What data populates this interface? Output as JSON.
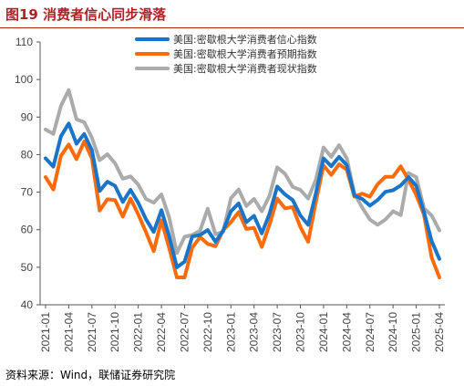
{
  "title": "图19 消费者信心同步滑落",
  "source": "资料来源：Wind，联储证券研究院",
  "colors": {
    "brand": "#b31f24",
    "series": [
      "#1a75c9",
      "#ff6a0a",
      "#ababab"
    ]
  },
  "chart_data": {
    "type": "line",
    "x_ticks": [
      "2021-01",
      "2021-04",
      "2021-07",
      "2021-10",
      "2022-01",
      "2022-04",
      "2022-07",
      "2022-10",
      "2023-01",
      "2023-04",
      "2023-07",
      "2023-10",
      "2024-01",
      "2024-04",
      "2024-07",
      "2024-10",
      "2025-01",
      "2025-04"
    ],
    "x": [
      "2021-01",
      "2021-02",
      "2021-03",
      "2021-04",
      "2021-05",
      "2021-06",
      "2021-07",
      "2021-08",
      "2021-09",
      "2021-10",
      "2021-11",
      "2021-12",
      "2022-01",
      "2022-02",
      "2022-03",
      "2022-04",
      "2022-05",
      "2022-06",
      "2022-07",
      "2022-08",
      "2022-09",
      "2022-10",
      "2022-11",
      "2022-12",
      "2023-01",
      "2023-02",
      "2023-03",
      "2023-04",
      "2023-05",
      "2023-06",
      "2023-07",
      "2023-08",
      "2023-09",
      "2023-10",
      "2023-11",
      "2023-12",
      "2024-01",
      "2024-02",
      "2024-03",
      "2024-04",
      "2024-05",
      "2024-06",
      "2024-07",
      "2024-08",
      "2024-09",
      "2024-10",
      "2024-11",
      "2024-12",
      "2025-01",
      "2025-02",
      "2025-03",
      "2025-04"
    ],
    "ylim": [
      40,
      110
    ],
    "y_ticks": [
      40,
      50,
      60,
      70,
      80,
      90,
      100,
      110
    ],
    "legend_position": "top-right",
    "grid": false,
    "series": [
      {
        "name": "美国:密歇根大学消费者信心指数",
        "color": "#1a75c9",
        "values": [
          79.0,
          76.8,
          84.9,
          88.3,
          82.9,
          85.5,
          81.2,
          70.3,
          72.8,
          71.7,
          67.4,
          70.6,
          67.2,
          62.8,
          59.4,
          65.2,
          58.4,
          50.0,
          51.5,
          58.2,
          58.6,
          59.9,
          56.8,
          59.7,
          64.9,
          67.0,
          62.0,
          63.7,
          59.0,
          64.2,
          71.5,
          69.4,
          67.9,
          63.8,
          61.3,
          69.7,
          79.0,
          76.9,
          79.4,
          77.2,
          69.1,
          68.2,
          66.4,
          67.9,
          70.1,
          70.5,
          71.8,
          74.0,
          71.7,
          64.7,
          57.0,
          52.2
        ]
      },
      {
        "name": "美国:密歇根大学消费者预期指数",
        "color": "#ff6a0a",
        "values": [
          74.0,
          70.7,
          79.7,
          82.7,
          78.8,
          83.5,
          79.0,
          65.1,
          68.1,
          67.9,
          63.5,
          68.3,
          64.1,
          59.4,
          54.3,
          62.5,
          55.2,
          47.3,
          47.3,
          55.2,
          58.0,
          56.2,
          55.6,
          59.9,
          62.0,
          64.7,
          60.2,
          60.5,
          55.4,
          61.3,
          68.3,
          65.7,
          66.0,
          60.7,
          56.8,
          67.4,
          77.1,
          74.6,
          77.4,
          76.0,
          68.8,
          69.6,
          68.8,
          72.1,
          74.1,
          74.1,
          76.9,
          73.3,
          69.3,
          64.0,
          52.6,
          47.3
        ]
      },
      {
        "name": "美国:密歇根大学消费者现状指数",
        "color": "#ababab",
        "values": [
          86.7,
          85.5,
          93.0,
          97.2,
          89.4,
          88.6,
          84.5,
          78.5,
          80.1,
          77.7,
          73.6,
          74.2,
          72.0,
          68.2,
          67.2,
          69.4,
          63.3,
          53.8,
          58.1,
          58.6,
          59.7,
          65.6,
          58.8,
          59.4,
          68.4,
          70.7,
          66.3,
          68.2,
          64.9,
          69.0,
          76.6,
          74.9,
          71.4,
          70.6,
          68.3,
          73.3,
          81.9,
          79.4,
          82.5,
          79.0,
          69.6,
          65.9,
          62.7,
          61.3,
          62.7,
          64.9,
          63.9,
          75.1,
          74.0,
          65.7,
          63.8,
          59.8
        ]
      }
    ]
  }
}
